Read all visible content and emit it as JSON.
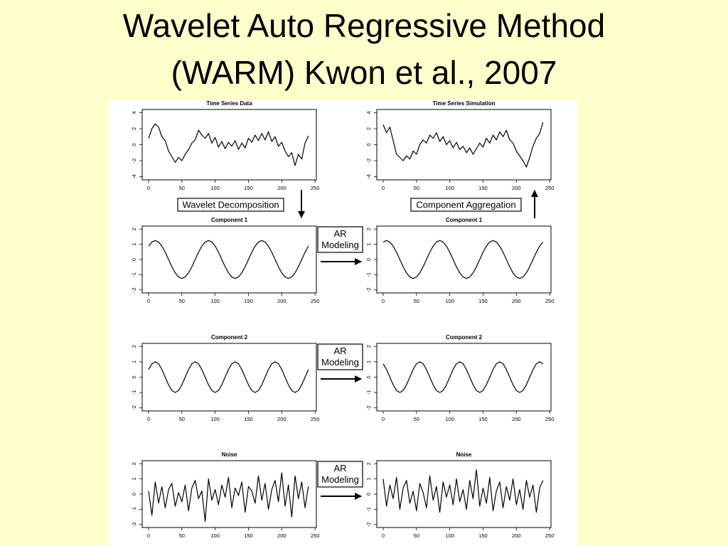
{
  "slide": {
    "title_lines": [
      "Wavelet Auto Regressive Method",
      "(WARM) Kwon et al., 2007"
    ],
    "decomposition": "Wavelet Decomposition",
    "aggregation": "Component Aggregation",
    "ar_modeling": [
      [
        "AR",
        "Modeling"
      ],
      [
        "AR",
        "Modeling"
      ],
      [
        "AR",
        "Modeling"
      ]
    ]
  },
  "chart_data": [
    {
      "type": "line",
      "title": "Time Series Data",
      "color": "#000000",
      "x": [
        0,
        5,
        10,
        15,
        20,
        25,
        30,
        35,
        40,
        45,
        50,
        55,
        60,
        65,
        70,
        75,
        80,
        85,
        90,
        95,
        100,
        105,
        110,
        115,
        120,
        125,
        130,
        135,
        140,
        145,
        150,
        155,
        160,
        165,
        170,
        175,
        180,
        185,
        190,
        195,
        200,
        205,
        210,
        215,
        220,
        225,
        230,
        235,
        240
      ],
      "values": [
        0.8,
        2.0,
        2.6,
        2.2,
        1.0,
        0.5,
        -0.8,
        -1.5,
        -2.2,
        -1.6,
        -2.0,
        -1.2,
        -0.6,
        0.2,
        0.6,
        1.8,
        1.2,
        0.8,
        1.4,
        0.2,
        0.9,
        -0.3,
        0.4,
        -0.5,
        0.3,
        -0.2,
        0.5,
        -0.6,
        0.2,
        -0.4,
        0.8,
        0.3,
        1.2,
        0.5,
        1.4,
        0.6,
        1.6,
        0.4,
        1.0,
        -0.2,
        0.3,
        -0.8,
        -1.5,
        -1.0,
        -2.6,
        -1.2,
        -1.8,
        0.2,
        1.1
      ],
      "xlim": [
        -9.6,
        252
      ],
      "ylim": [
        -4.4,
        4.4
      ],
      "xticks": [
        0,
        50,
        100,
        150,
        200,
        250
      ],
      "yticks": [
        -4,
        -2,
        0,
        2,
        4
      ]
    },
    {
      "type": "line",
      "title": "Time Series Simulation",
      "color": "#000000",
      "x": [
        0,
        5,
        10,
        15,
        20,
        25,
        30,
        35,
        40,
        45,
        50,
        55,
        60,
        65,
        70,
        75,
        80,
        85,
        90,
        95,
        100,
        105,
        110,
        115,
        120,
        125,
        130,
        135,
        140,
        145,
        150,
        155,
        160,
        165,
        170,
        175,
        180,
        185,
        190,
        195,
        200,
        205,
        210,
        215,
        220,
        225,
        230,
        235,
        240
      ],
      "values": [
        2.5,
        1.5,
        2.2,
        0.5,
        -1.2,
        -1.6,
        -2.0,
        -1.4,
        -1.8,
        -0.8,
        -1.2,
        0.0,
        0.6,
        0.2,
        1.2,
        0.8,
        1.5,
        0.4,
        1.0,
        0.0,
        0.5,
        -0.4,
        0.3,
        -0.6,
        -0.2,
        -1.0,
        -0.4,
        -1.2,
        -0.5,
        0.2,
        -0.3,
        0.8,
        0.2,
        1.2,
        0.6,
        1.6,
        1.0,
        1.8,
        0.6,
        0.2,
        -0.8,
        -1.4,
        -2.0,
        -2.8,
        -1.6,
        -0.2,
        0.8,
        1.4,
        2.8
      ],
      "xlim": [
        -9.6,
        252
      ],
      "ylim": [
        -4.4,
        4.4
      ],
      "xticks": [
        0,
        50,
        100,
        150,
        200,
        250
      ],
      "yticks": [
        -4,
        -2,
        0,
        2,
        4
      ]
    },
    {
      "type": "line",
      "title": "Component 1",
      "color": "#000000",
      "x": [
        0,
        5,
        10,
        15,
        20,
        25,
        30,
        35,
        40,
        45,
        50,
        55,
        60,
        65,
        70,
        75,
        80,
        85,
        90,
        95,
        100,
        105,
        110,
        115,
        120,
        125,
        130,
        135,
        140,
        145,
        150,
        155,
        160,
        165,
        170,
        175,
        180,
        185,
        190,
        195,
        200,
        205,
        210,
        215,
        220,
        225,
        230,
        235,
        240
      ],
      "values": [
        0.88,
        1.15,
        1.25,
        1.15,
        0.88,
        0.48,
        0,
        -0.48,
        -0.88,
        -1.15,
        -1.25,
        -1.15,
        -0.88,
        -0.48,
        0,
        0.48,
        0.88,
        1.15,
        1.25,
        1.15,
        0.88,
        0.48,
        0,
        -0.48,
        -0.88,
        -1.15,
        -1.25,
        -1.15,
        -0.88,
        -0.48,
        0,
        0.48,
        0.88,
        1.15,
        1.25,
        1.15,
        0.88,
        0.48,
        0,
        -0.48,
        -0.88,
        -1.15,
        -1.25,
        -1.15,
        -0.88,
        -0.48,
        0,
        0.48,
        0.88
      ],
      "xlim": [
        -9.6,
        252
      ],
      "ylim": [
        -2.2,
        2.2
      ],
      "xticks": [
        0,
        50,
        100,
        150,
        200,
        250
      ],
      "yticks": [
        -2,
        -1,
        0,
        1,
        2
      ]
    },
    {
      "type": "line",
      "title": "Component 1",
      "color": "#000000",
      "x": [
        0,
        5,
        10,
        15,
        20,
        25,
        30,
        35,
        40,
        45,
        50,
        55,
        60,
        65,
        70,
        75,
        80,
        85,
        90,
        95,
        100,
        105,
        110,
        115,
        120,
        125,
        130,
        135,
        140,
        145,
        150,
        155,
        160,
        165,
        170,
        175,
        180,
        185,
        190,
        195,
        200,
        205,
        210,
        215,
        220,
        225,
        230,
        235,
        240
      ],
      "values": [
        1.15,
        1.25,
        1.15,
        0.88,
        0.48,
        0,
        -0.48,
        -0.88,
        -1.15,
        -1.25,
        -1.15,
        -0.88,
        -0.48,
        0,
        0.48,
        0.88,
        1.15,
        1.25,
        1.15,
        0.88,
        0.48,
        0,
        -0.48,
        -0.88,
        -1.15,
        -1.25,
        -1.15,
        -0.88,
        -0.48,
        0,
        0.48,
        0.88,
        1.15,
        1.25,
        1.15,
        0.88,
        0.48,
        0,
        -0.48,
        -0.88,
        -1.15,
        -1.25,
        -1.15,
        -0.88,
        -0.48,
        0,
        0.48,
        0.88,
        1.15
      ],
      "xlim": [
        -9.6,
        252
      ],
      "ylim": [
        -2.2,
        2.2
      ],
      "xticks": [
        0,
        50,
        100,
        150,
        200,
        250
      ],
      "yticks": [
        -2,
        -1,
        0,
        1,
        2
      ]
    },
    {
      "type": "line",
      "title": "Component 2",
      "color": "#000000",
      "x": [
        0,
        5,
        10,
        15,
        20,
        25,
        30,
        35,
        40,
        45,
        50,
        55,
        60,
        65,
        70,
        75,
        80,
        85,
        90,
        95,
        100,
        105,
        110,
        115,
        120,
        125,
        130,
        135,
        140,
        145,
        150,
        155,
        160,
        165,
        170,
        175,
        180,
        185,
        190,
        195,
        200,
        205,
        210,
        215,
        220,
        225,
        230,
        235,
        240
      ],
      "values": [
        0.5,
        0.87,
        1,
        0.87,
        0.5,
        0,
        -0.5,
        -0.87,
        -1,
        -0.87,
        -0.5,
        0,
        0.5,
        0.87,
        1,
        0.87,
        0.5,
        0,
        -0.5,
        -0.87,
        -1,
        -0.87,
        -0.5,
        0,
        0.5,
        0.87,
        1,
        0.87,
        0.5,
        0,
        -0.5,
        -0.87,
        -1,
        -0.87,
        -0.5,
        0,
        0.5,
        0.87,
        1,
        0.87,
        0.5,
        0,
        -0.5,
        -0.87,
        -1,
        -0.87,
        -0.5,
        0,
        0.5
      ],
      "xlim": [
        -9.6,
        252
      ],
      "ylim": [
        -2.2,
        2.2
      ],
      "xticks": [
        0,
        50,
        100,
        150,
        200,
        250
      ],
      "yticks": [
        -2,
        -1,
        0,
        1,
        2
      ]
    },
    {
      "type": "line",
      "title": "Component 2",
      "color": "#000000",
      "x": [
        0,
        5,
        10,
        15,
        20,
        25,
        30,
        35,
        40,
        45,
        50,
        55,
        60,
        65,
        70,
        75,
        80,
        85,
        90,
        95,
        100,
        105,
        110,
        115,
        120,
        125,
        130,
        135,
        140,
        145,
        150,
        155,
        160,
        165,
        170,
        175,
        180,
        185,
        190,
        195,
        200,
        205,
        210,
        215,
        220,
        225,
        230,
        235,
        240
      ],
      "values": [
        0.87,
        0.5,
        0,
        -0.5,
        -0.87,
        -1,
        -0.87,
        -0.5,
        0,
        0.5,
        0.87,
        1,
        0.87,
        0.5,
        0,
        -0.5,
        -0.87,
        -1,
        -0.87,
        -0.5,
        0,
        0.5,
        0.87,
        1,
        0.87,
        0.5,
        0,
        -0.5,
        -0.87,
        -1,
        -0.87,
        -0.5,
        0,
        0.5,
        0.87,
        1,
        0.87,
        0.5,
        0,
        -0.5,
        -0.87,
        -1,
        -0.87,
        -0.5,
        0,
        0.5,
        0.87,
        1,
        0.87
      ],
      "xlim": [
        -9.6,
        252
      ],
      "ylim": [
        -2.2,
        2.2
      ],
      "xticks": [
        0,
        50,
        100,
        150,
        200,
        250
      ],
      "yticks": [
        -2,
        -1,
        0,
        1,
        2
      ]
    },
    {
      "type": "line",
      "title": "Noise",
      "color": "#000000",
      "x": [
        0,
        5,
        10,
        15,
        20,
        25,
        30,
        35,
        40,
        45,
        50,
        55,
        60,
        65,
        70,
        75,
        80,
        85,
        90,
        95,
        100,
        105,
        110,
        115,
        120,
        125,
        130,
        135,
        140,
        145,
        150,
        155,
        160,
        165,
        170,
        175,
        180,
        185,
        190,
        195,
        200,
        205,
        210,
        215,
        220,
        225,
        230,
        235,
        240
      ],
      "values": [
        0.2,
        -1.4,
        0.8,
        -0.6,
        0.5,
        -0.9,
        0.3,
        0.7,
        -0.8,
        0.1,
        -0.5,
        0.6,
        -1.1,
        0.4,
        0.9,
        -0.3,
        0.2,
        -1.8,
        1.0,
        -0.4,
        0.3,
        -0.7,
        0.6,
        -0.2,
        1.1,
        -0.9,
        0.4,
        -0.1,
        0.8,
        -1.2,
        0.5,
        0.2,
        -0.6,
        1.2,
        -0.4,
        0.7,
        -1.0,
        0.3,
        0.9,
        -0.5,
        1.4,
        -0.8,
        0.6,
        -1.5,
        1.2,
        -0.3,
        0.8,
        -0.9,
        0.5
      ],
      "xlim": [
        -9.6,
        252
      ],
      "ylim": [
        -2.2,
        2.2
      ],
      "xticks": [
        0,
        50,
        100,
        150,
        200,
        250
      ],
      "yticks": [
        -2,
        -1,
        0,
        1,
        2
      ]
    },
    {
      "type": "line",
      "title": "Noise",
      "color": "#000000",
      "x": [
        0,
        5,
        10,
        15,
        20,
        25,
        30,
        35,
        40,
        45,
        50,
        55,
        60,
        65,
        70,
        75,
        80,
        85,
        90,
        95,
        100,
        105,
        110,
        115,
        120,
        125,
        130,
        135,
        140,
        145,
        150,
        155,
        160,
        165,
        170,
        175,
        180,
        185,
        190,
        195,
        200,
        205,
        210,
        215,
        220,
        225,
        230,
        235,
        240
      ],
      "values": [
        1.0,
        -0.8,
        0.6,
        -0.3,
        1.1,
        -1.0,
        0.4,
        0.9,
        -0.6,
        0.2,
        -1.1,
        0.7,
        0.1,
        -0.9,
        1.2,
        -0.4,
        0.5,
        -1.2,
        0.8,
        -0.2,
        0.6,
        -0.7,
        1.0,
        -0.5,
        0.3,
        -1.0,
        0.9,
        -0.3,
        1.6,
        -0.8,
        0.4,
        -0.6,
        1.1,
        -1.1,
        0.2,
        0.8,
        -0.9,
        0.5,
        -0.4,
        1.0,
        -0.7,
        0.3,
        -1.0,
        0.9,
        -0.2,
        0.6,
        -1.2,
        0.4,
        0.9
      ],
      "xlim": [
        -9.6,
        252
      ],
      "ylim": [
        -2.2,
        2.2
      ],
      "xticks": [
        0,
        50,
        100,
        150,
        200,
        250
      ],
      "yticks": [
        -2,
        -1,
        0,
        1,
        2
      ]
    }
  ]
}
